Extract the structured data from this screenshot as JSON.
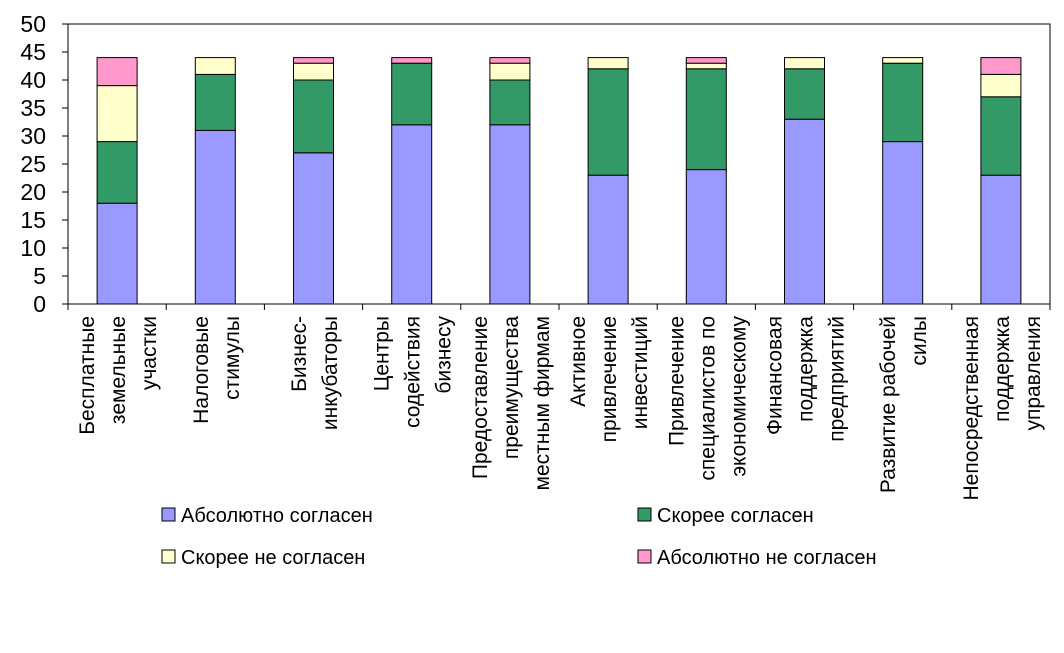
{
  "chart_data": {
    "type": "bar",
    "stacked": true,
    "categories": [
      "Бесплатные земельные участки",
      "Налоговые стимулы",
      "Бизнес-инкубаторы",
      "Центры содействия бизнесу",
      "Предоставление преимущества местным фирмам",
      "Активное привлечение инвестиций",
      "Привлечение специалистов по экономическому",
      "Финансовая поддержка предприятий",
      "Развитие рабочей силы",
      "Непосредственная поддержка управления"
    ],
    "category_lines": [
      [
        "Бесплатные",
        "земельные",
        "участки"
      ],
      [
        "Налоговые",
        "стимулы"
      ],
      [
        "Бизнес-",
        "инкубаторы"
      ],
      [
        "Центры",
        "содействия",
        "бизнесу"
      ],
      [
        "Предоставление",
        "преимущества",
        "местным фирмам"
      ],
      [
        "Активное",
        "привлечение",
        "инвестиций"
      ],
      [
        "Привлечение",
        "специалистов по",
        "экономическому"
      ],
      [
        "Финансовая",
        "поддержка",
        "предприятий"
      ],
      [
        "Развитие рабочей",
        "силы"
      ],
      [
        "Непосредственная",
        "поддержка",
        "управления"
      ]
    ],
    "series": [
      {
        "name": "Абсолютно согласен",
        "color": "#9999ff",
        "values": [
          18,
          31,
          27,
          32,
          32,
          23,
          24,
          33,
          29,
          23
        ]
      },
      {
        "name": "Скорее согласен",
        "color": "#339966",
        "values": [
          11,
          10,
          13,
          11,
          8,
          19,
          18,
          9,
          14,
          14
        ]
      },
      {
        "name": "Скорее не согласен",
        "color": "#ffffcc",
        "values": [
          10,
          3,
          3,
          0,
          3,
          2,
          1,
          2,
          1,
          4
        ]
      },
      {
        "name": "Абсолютно не согласен",
        "color": "#ff99cc",
        "values": [
          5,
          0,
          1,
          1,
          1,
          0,
          1,
          0,
          0,
          3
        ]
      }
    ],
    "ylim": [
      0,
      50
    ],
    "yticks": [
      0,
      5,
      10,
      15,
      20,
      25,
      30,
      35,
      40,
      45,
      50
    ],
    "grid": false,
    "legend_position": "bottom"
  }
}
